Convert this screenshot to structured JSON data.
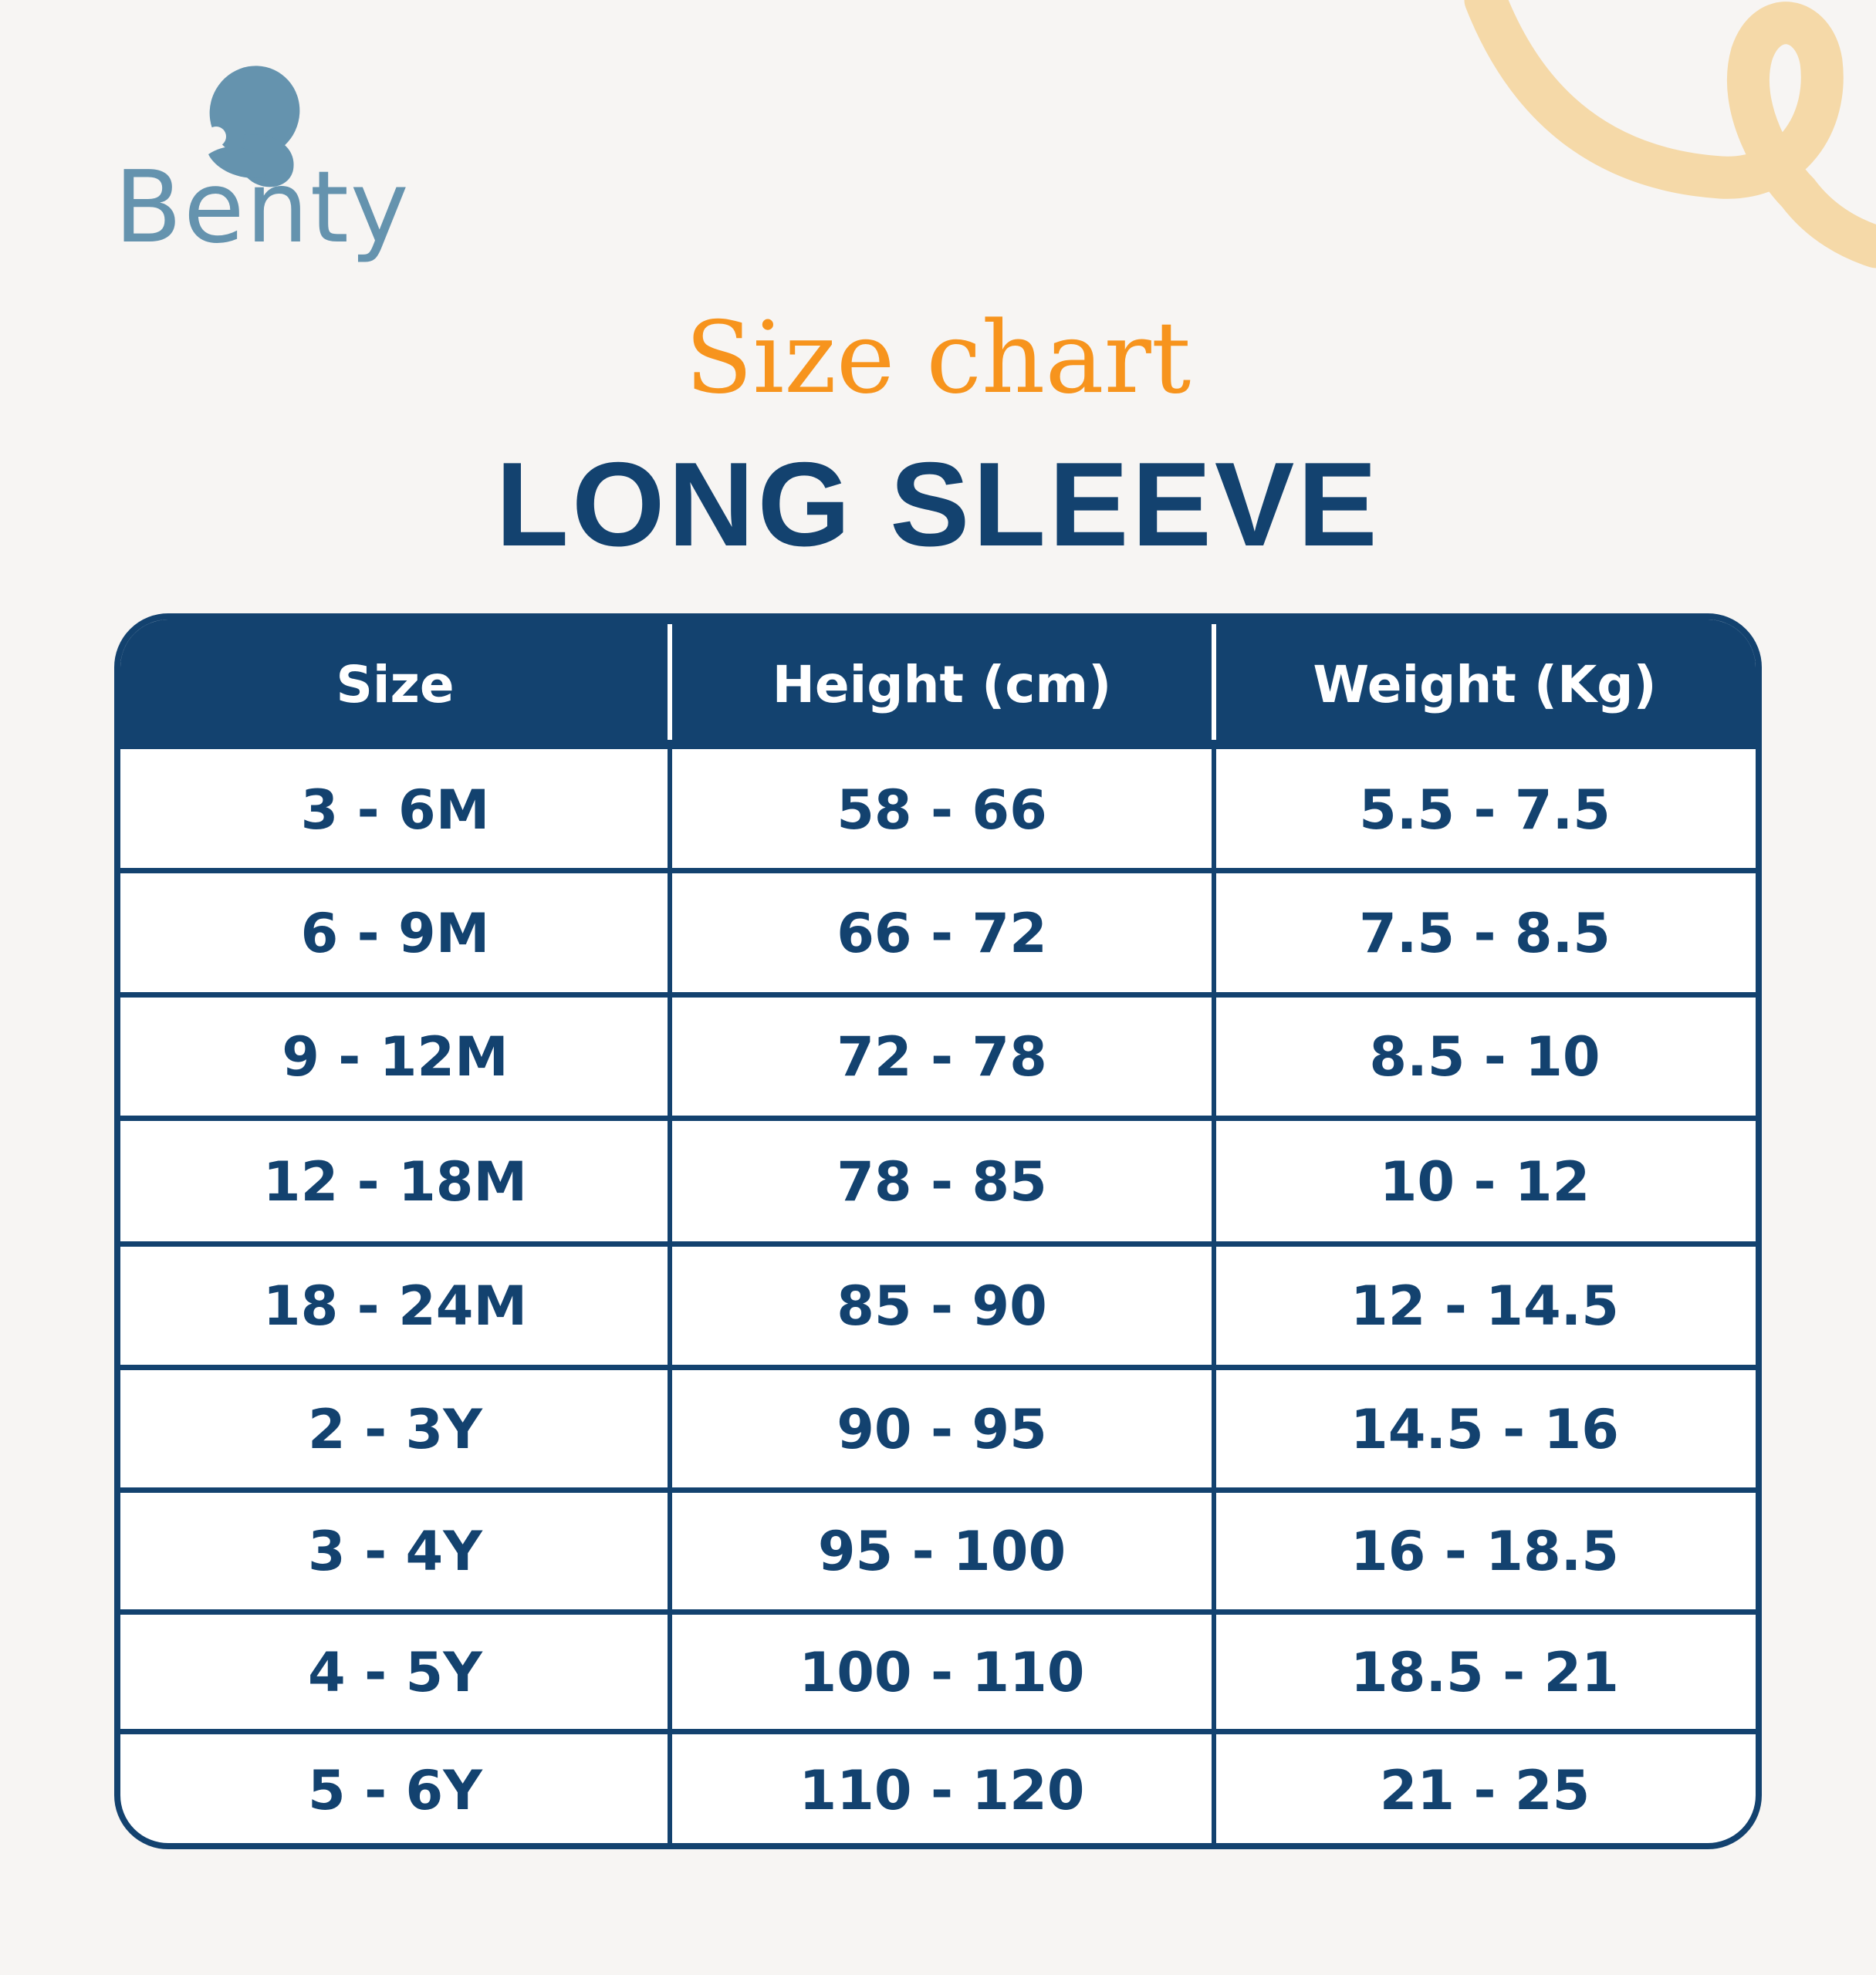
{
  "brand": {
    "name": "Benty",
    "logo_color": "#6593ae"
  },
  "title": {
    "script": "Size chart",
    "main": "LONG SLEEVE"
  },
  "colors": {
    "navy": "#13426f",
    "orange": "#f7941d",
    "decor": "#f5d9a8",
    "background": "#f7f5f3"
  },
  "table": {
    "headers": [
      "Size",
      "Height (cm)",
      "Weight (Kg)"
    ],
    "rows": [
      [
        "3 - 6M",
        "58 - 66",
        "5.5 - 7.5"
      ],
      [
        "6 - 9M",
        "66 - 72",
        "7.5 - 8.5"
      ],
      [
        "9 - 12M",
        "72 - 78",
        "8.5 - 10"
      ],
      [
        "12 - 18M",
        "78 - 85",
        "10 - 12"
      ],
      [
        "18 - 24M",
        "85 - 90",
        "12 - 14.5"
      ],
      [
        "2 - 3Y",
        "90 - 95",
        "14.5 - 16"
      ],
      [
        "3 - 4Y",
        "95 - 100",
        "16 - 18.5"
      ],
      [
        "4 - 5Y",
        "100 - 110",
        "18.5 - 21"
      ],
      [
        "5 - 6Y",
        "110 - 120",
        "21 - 25"
      ]
    ]
  }
}
